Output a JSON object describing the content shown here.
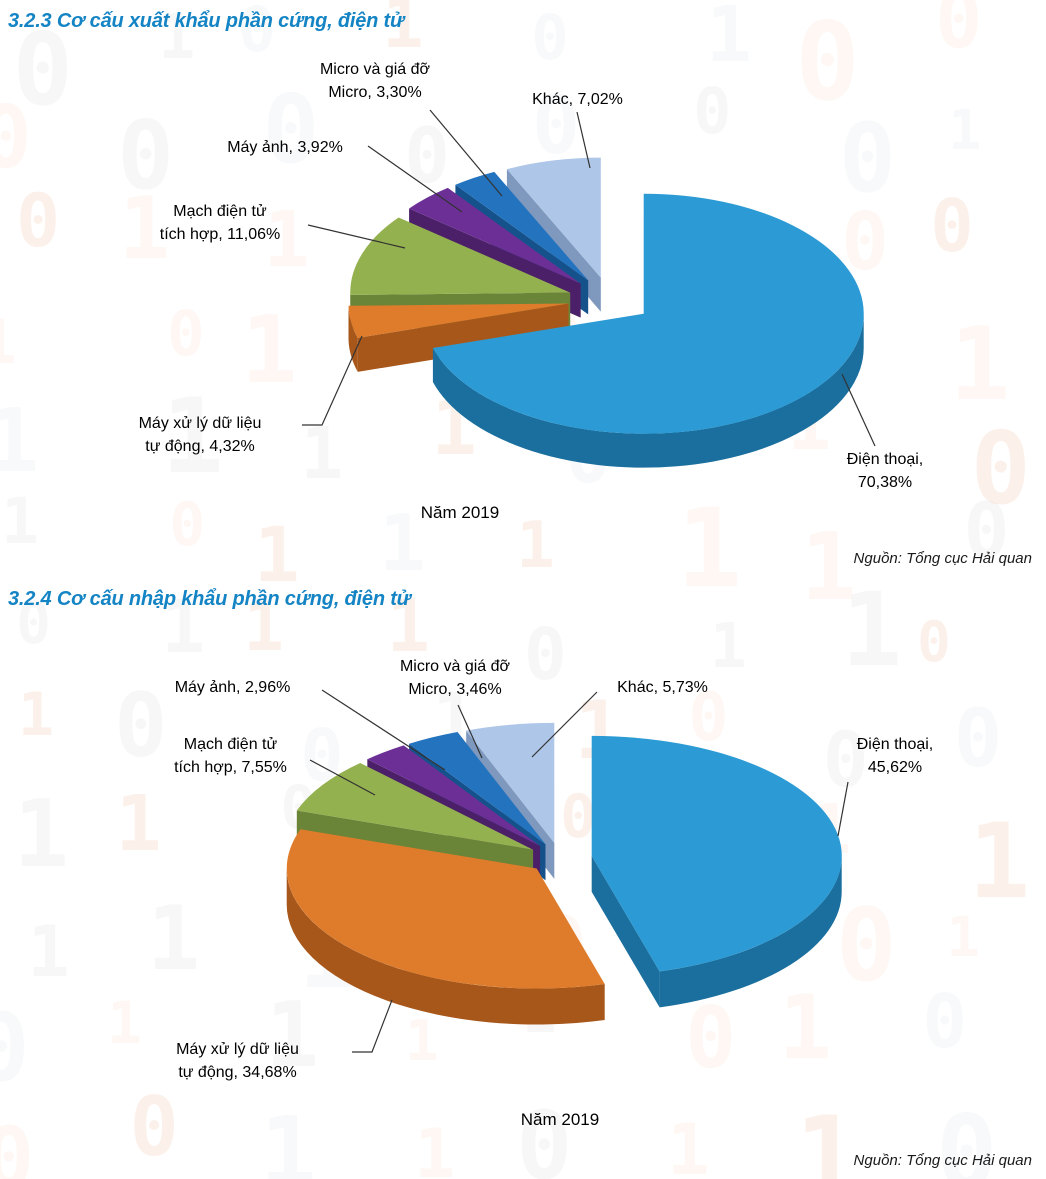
{
  "theme": {
    "background": "#ffffff",
    "heading_color": "#1484c4",
    "label_color": "#000000",
    "leader_line_color": "#333333",
    "watermark_colors": [
      "rgba(230,122,45,0.10)",
      "rgba(150,150,150,0.08)",
      "rgba(230,122,45,0.06)",
      "rgba(120,150,170,0.06)"
    ]
  },
  "sections": [
    {
      "heading": "3.2.3 Cơ cấu xuất khẩu phần cứng, điện tử",
      "source": "Nguồn: Tổng cục Hải quan"
    },
    {
      "heading": "3.2.4 Cơ cấu nhập khẩu phần cứng, điện tử",
      "source": "Nguồn: Tổng cục Hải quan"
    }
  ],
  "chart_data": [
    {
      "type": "pie",
      "style": "3d-exploded",
      "title": "Năm 2019",
      "unit": "%",
      "direction": "clockwise",
      "start_angle": 0,
      "legend": "data-labels",
      "labels": [
        "Điện thoại",
        "Máy xử lý dữ liệu tự động",
        "Mạch điện tử tích hợp",
        "Máy ảnh",
        "Micro và giá đỡ Micro",
        "Khác"
      ],
      "values": [
        70.38,
        4.32,
        11.06,
        3.92,
        3.3,
        7.02
      ],
      "slice_display": [
        "Điện thoại,\n70,38%",
        "Máy xử lý dữ liệu\ntự động, 4,32%",
        "Mạch điện tử\ntích hợp, 11,06%",
        "Máy ảnh, 3,92%",
        "Micro và giá đỡ\nMicro, 3,30%",
        "Khác, 7,02%"
      ],
      "colors": [
        "#2C9BD5",
        "#DE7C2B",
        "#94B14F",
        "#6C2F96",
        "#2373BF",
        "#AEC6E8"
      ],
      "side_colors": [
        "#1A6F9E",
        "#A8571B",
        "#6B8538",
        "#4C2068",
        "#15528C",
        "#7E98BE"
      ]
    },
    {
      "type": "pie",
      "style": "3d-exploded",
      "title": "Năm 2019",
      "unit": "%",
      "direction": "clockwise",
      "start_angle": 0,
      "legend": "data-labels",
      "labels": [
        "Điện thoại",
        "Máy xử lý dữ liệu tự động",
        "Mạch điện tử tích hợp",
        "Máy ảnh",
        "Micro và giá đỡ Micro",
        "Khác"
      ],
      "values": [
        45.62,
        34.68,
        7.55,
        2.96,
        3.46,
        5.73
      ],
      "slice_display": [
        "Điện thoại,\n45,62%",
        "Máy xử lý dữ liệu\ntự động, 34,68%",
        "Mạch điện tử\ntích hợp, 7,55%",
        "Máy ảnh, 2,96%",
        "Micro và giá đỡ\nMicro, 3,46%",
        "Khác, 5,73%"
      ],
      "colors": [
        "#2C9BD5",
        "#DE7C2B",
        "#94B14F",
        "#6C2F96",
        "#2373BF",
        "#AEC6E8"
      ],
      "side_colors": [
        "#1A6F9E",
        "#A8571B",
        "#6B8538",
        "#4C2068",
        "#15528C",
        "#7E98BE"
      ]
    }
  ]
}
